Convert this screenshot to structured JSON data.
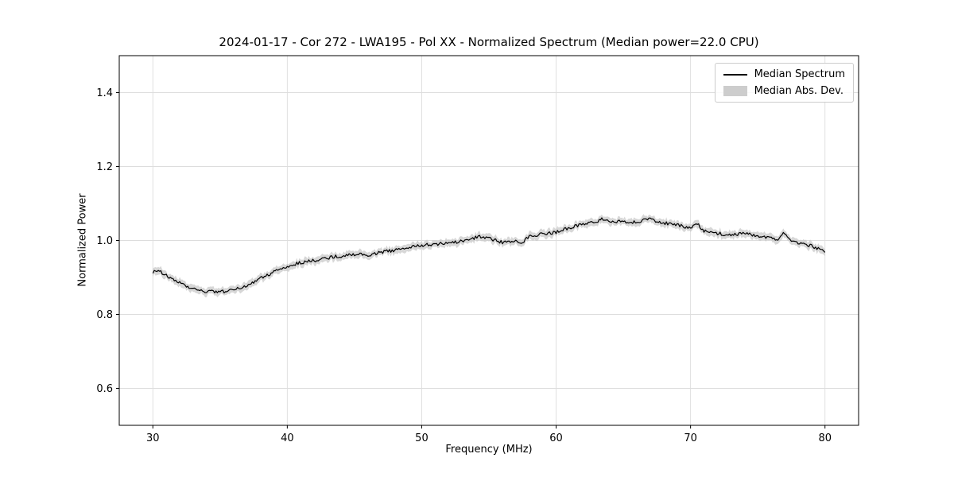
{
  "chart_data": {
    "type": "line",
    "title": "2024-01-17 - Cor 272 - LWA195 - Pol XX - Normalized Spectrum (Median power=22.0 CPU)",
    "xlabel": "Frequency (MHz)",
    "ylabel": "Normalized Power",
    "xlim": [
      27.5,
      82.5
    ],
    "ylim": [
      0.5,
      1.5
    ],
    "xticks": [
      30,
      40,
      50,
      60,
      70,
      80
    ],
    "yticks": [
      0.6,
      0.8,
      1.0,
      1.2,
      1.4
    ],
    "grid": true,
    "legend": [
      "Median Spectrum",
      "Median Abs. Dev."
    ],
    "legend_position": "upper right",
    "line_color": "#000000",
    "band_color": "#c9c9c9",
    "grid_color": "#dddddd",
    "x_start": 30.0,
    "x_step": 0.5,
    "series": [
      {
        "name": "Median Spectrum",
        "values": [
          0.915,
          0.918,
          0.905,
          0.895,
          0.885,
          0.876,
          0.868,
          0.864,
          0.862,
          0.861,
          0.861,
          0.863,
          0.866,
          0.871,
          0.878,
          0.888,
          0.898,
          0.906,
          0.915,
          0.923,
          0.93,
          0.935,
          0.94,
          0.943,
          0.946,
          0.95,
          0.953,
          0.956,
          0.958,
          0.961,
          0.963,
          0.962,
          0.96,
          0.964,
          0.968,
          0.971,
          0.974,
          0.977,
          0.98,
          0.984,
          0.987,
          0.989,
          0.99,
          0.991,
          0.992,
          0.995,
          0.998,
          1.003,
          1.008,
          1.012,
          1.005,
          1.0,
          0.995,
          0.998,
          1.0,
          0.995,
          1.012,
          1.015,
          1.018,
          1.02,
          1.022,
          1.028,
          1.035,
          1.039,
          1.043,
          1.048,
          1.052,
          1.058,
          1.05,
          1.051,
          1.052,
          1.05,
          1.048,
          1.054,
          1.06,
          1.052,
          1.048,
          1.045,
          1.042,
          1.037,
          1.032,
          1.045,
          1.025,
          1.022,
          1.02,
          1.017,
          1.015,
          1.017,
          1.02,
          1.016,
          1.012,
          1.008,
          1.005,
          1.0,
          1.022,
          0.995,
          0.992,
          0.988,
          0.985,
          0.978,
          0.968
        ]
      }
    ],
    "median_abs_dev_halfwidth": 0.01,
    "noise_amplitude": 0.0045
  }
}
